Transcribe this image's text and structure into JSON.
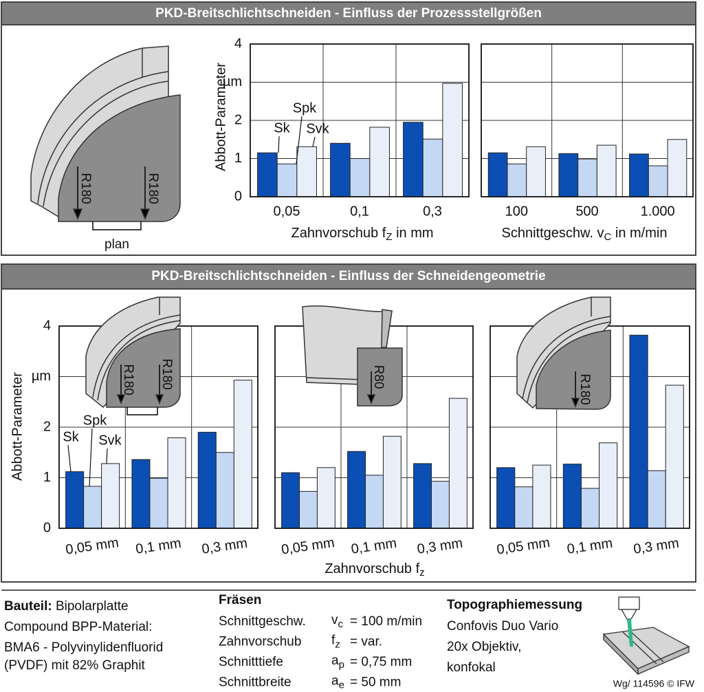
{
  "section_titles": [
    "PKD-Breitschlichtschneiden - Einfluss der Prozessstellgrößen",
    "PKD-Breitschlichtschneiden - Einfluss der Schneidengeometrie"
  ],
  "illustrations": [
    {
      "labels": [
        "R180",
        "R180"
      ],
      "note": "plan"
    },
    {
      "labels": [
        "R180",
        "R180"
      ]
    },
    {
      "labels": [
        "R80"
      ]
    },
    {
      "labels": [
        "R180"
      ]
    }
  ],
  "bottom_xlabel": [
    "Zahnvorschub f",
    "z"
  ],
  "chart_data": [
    {
      "type": "bar",
      "ylabel": "Abbott-Parameter",
      "categories": [
        "0,05",
        "0,1",
        "0,3"
      ],
      "xlabel": [
        "Zahnvorschub f",
        "Z",
        " in mm"
      ],
      "ylim": [
        0,
        4
      ],
      "yticks": [
        0,
        1,
        2,
        {
          "value": 3,
          "label": "µm"
        },
        4
      ],
      "grid": true,
      "series": [
        {
          "name": "Sk",
          "color": "#0c4fb4",
          "values": [
            1.15,
            1.4,
            1.95
          ]
        },
        {
          "name": "Spk",
          "color": "#c4d8f4",
          "values": [
            0.86,
            1.0,
            1.51
          ]
        },
        {
          "name": "Svk",
          "color": "#e9eff9",
          "values": [
            1.31,
            1.82,
            2.97
          ]
        }
      ]
    },
    {
      "type": "bar",
      "categories": [
        "100",
        "500",
        "1.000"
      ],
      "xlabel": [
        "Schnittgeschw. v",
        "C",
        " in m/min"
      ],
      "ylim": [
        0,
        4
      ],
      "yticks": [
        0,
        1,
        2,
        3,
        4
      ],
      "grid": true,
      "series": [
        {
          "color": "#0c4fb4",
          "values": [
            1.15,
            1.13,
            1.12
          ]
        },
        {
          "color": "#c4d8f4",
          "values": [
            0.86,
            0.99,
            0.81
          ]
        },
        {
          "color": "#e9eff9",
          "values": [
            1.31,
            1.35,
            1.5
          ]
        }
      ]
    },
    {
      "type": "bar",
      "ylabel": "Abbott-Parameter",
      "categories": [
        "0,05 mm",
        "0,1 mm",
        "0,3 mm"
      ],
      "ylim": [
        0,
        4
      ],
      "yticks": [
        0,
        1,
        2,
        {
          "value": 3,
          "label": "µm"
        },
        4
      ],
      "grid": true,
      "series": [
        {
          "name": "Sk",
          "color": "#0c4fb4",
          "values": [
            1.12,
            1.36,
            1.9
          ]
        },
        {
          "name": "Spk",
          "color": "#c4d8f4",
          "values": [
            0.83,
            0.99,
            1.5
          ]
        },
        {
          "name": "Svk",
          "color": "#e9eff9",
          "values": [
            1.28,
            1.79,
            2.93
          ]
        }
      ]
    },
    {
      "type": "bar",
      "categories": [
        "0,05 mm",
        "0,1 mm",
        "0,3 mm"
      ],
      "ylim": [
        0,
        4
      ],
      "yticks": [
        0,
        1,
        2,
        3,
        4
      ],
      "grid": true,
      "series": [
        {
          "color": "#0c4fb4",
          "values": [
            1.1,
            1.52,
            1.28
          ]
        },
        {
          "color": "#c4d8f4",
          "values": [
            0.73,
            1.05,
            0.93
          ]
        },
        {
          "color": "#e9eff9",
          "values": [
            1.2,
            1.82,
            2.57
          ]
        }
      ]
    },
    {
      "type": "bar",
      "categories": [
        "0,05 mm",
        "0,1 mm",
        "0,3 mm"
      ],
      "ylim": [
        0,
        4
      ],
      "yticks": [
        0,
        1,
        2,
        3,
        4
      ],
      "grid": true,
      "series": [
        {
          "color": "#0c4fb4",
          "values": [
            1.2,
            1.27,
            3.82
          ]
        },
        {
          "color": "#c4d8f4",
          "values": [
            0.82,
            0.79,
            1.14
          ]
        },
        {
          "color": "#e9eff9",
          "values": [
            1.25,
            1.69,
            2.83
          ]
        }
      ]
    }
  ],
  "footer": {
    "component": {
      "heading": "Bauteil:",
      "value": " Bipolarplatte",
      "lines": [
        "Compound BPP-Material:",
        "BMA6 - Polyvinylidenfluorid",
        "(PVDF) mit 82% Graphit"
      ]
    },
    "milling": {
      "heading": "Fräsen",
      "rows": [
        {
          "label": "Schnittgeschw.",
          "symbol": "v",
          "sub": "c",
          "value": "= 100 m/min"
        },
        {
          "label": "Zahnvorschub",
          "symbol": "f",
          "sub": "z",
          "value": "= var."
        },
        {
          "label": "Schnitttiefe",
          "symbol": "a",
          "sub": "p",
          "value": "= 0,75 mm"
        },
        {
          "label": "Schnittbreite",
          "symbol": "a",
          "sub": "e",
          "value": "= 50 mm"
        }
      ]
    },
    "measurement": {
      "heading": "Topographiemessung",
      "lines": [
        "Confovis Duo Vario",
        "20x Objektiv,",
        "konfokal"
      ]
    },
    "credit": "Wg/ 114596 © IFW"
  }
}
